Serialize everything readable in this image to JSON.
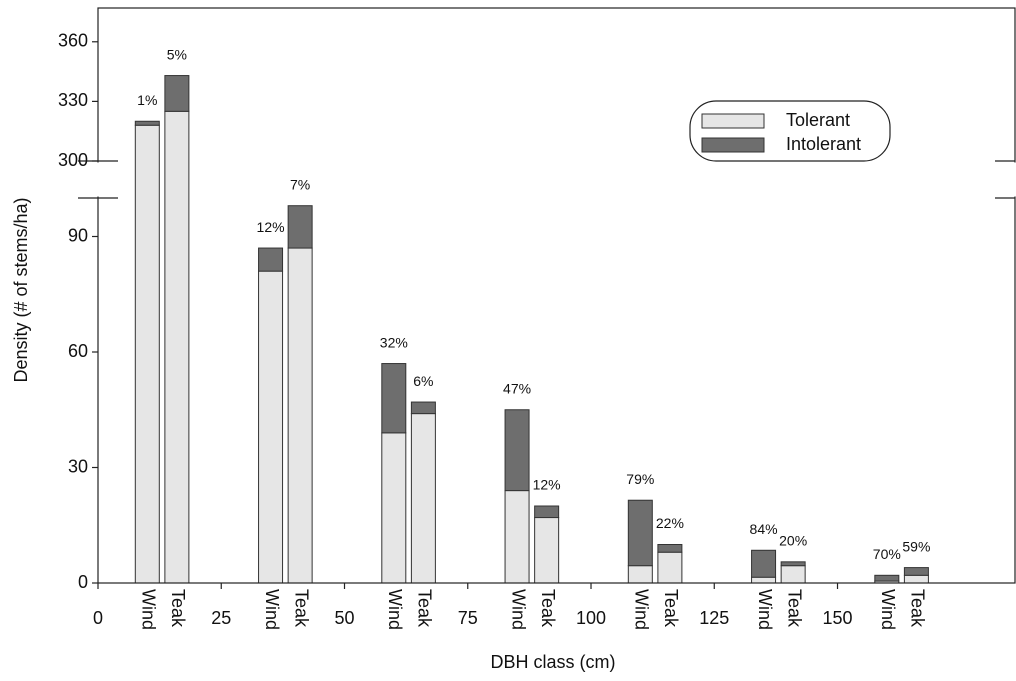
{
  "chart_data": {
    "type": "stacked-bar-broken",
    "x_label": "DBH class (cm)",
    "y_label": "Density (# of stems/ha)",
    "xlim": [
      0,
      186
    ],
    "xticks": [
      0,
      25,
      50,
      75,
      100,
      125,
      150
    ],
    "ylim": [
      0,
      377
    ],
    "y_break": [
      100,
      300
    ],
    "yticks": [
      0,
      30,
      60,
      90,
      300,
      330,
      360
    ],
    "legend": "upper right",
    "stack_names": [
      "Tolerant",
      "Intolerant"
    ],
    "stack_colors": [
      "#e6e6e6",
      "#6e6e6e"
    ],
    "groups": [
      {
        "name": "Wind",
        "x": [
          10,
          35,
          60,
          85,
          110,
          135,
          160
        ],
        "tolerant": [
          318,
          81,
          39,
          24,
          4.5,
          1.5,
          0.5
        ],
        "intolerant": [
          2,
          6,
          18,
          21,
          17,
          7,
          1.5
        ],
        "value_labels": [
          "1%",
          "12%",
          "32%",
          "47%",
          "79%",
          "84%",
          "70%"
        ]
      },
      {
        "name": "Teak",
        "x": [
          16,
          41,
          66,
          91,
          116,
          141,
          166
        ],
        "tolerant": [
          325,
          87,
          44,
          17,
          8,
          4.5,
          2
        ],
        "intolerant": [
          18,
          11,
          3,
          3,
          2,
          1,
          2
        ],
        "value_labels": [
          "5%",
          "7%",
          "6%",
          "12%",
          "22%",
          "20%",
          "59%"
        ]
      }
    ]
  }
}
